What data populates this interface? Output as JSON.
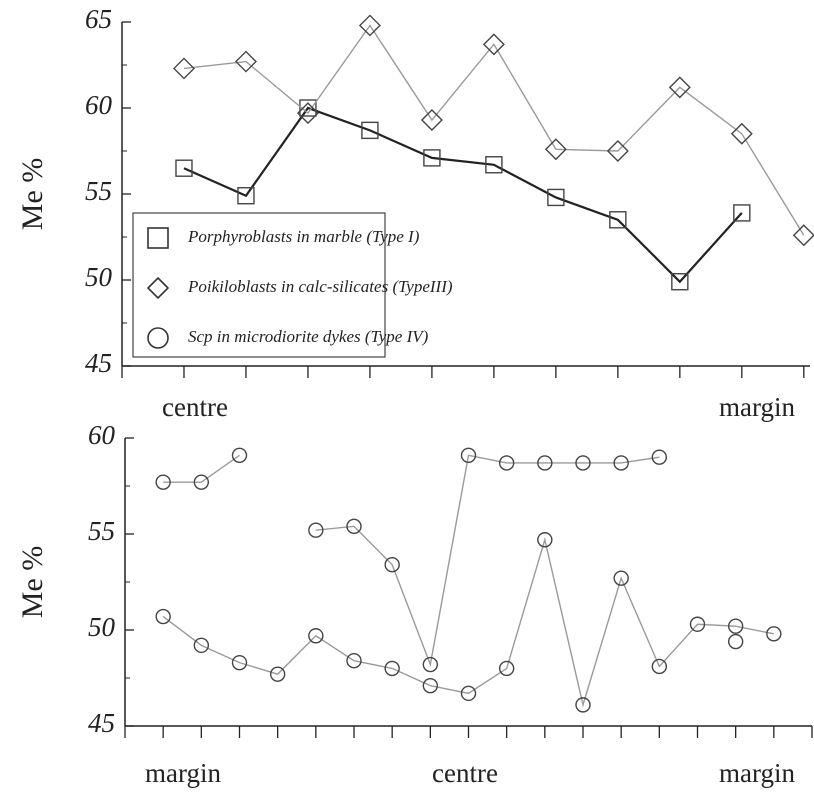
{
  "chart_data": [
    {
      "type": "line",
      "y_label": "Me %",
      "x_annotations": [
        "centre",
        "margin"
      ],
      "x": [
        1,
        2,
        3,
        4,
        5,
        6,
        7,
        8,
        9,
        10,
        11
      ],
      "xlim": [
        0,
        11.1
      ],
      "xticks": [
        0,
        1,
        2,
        3,
        4,
        5,
        6,
        7,
        8,
        9,
        10,
        11
      ],
      "ylim": [
        45,
        65
      ],
      "yticks": [
        45,
        50,
        55,
        60,
        65
      ],
      "series": [
        {
          "name": "Porphyroblasts in marble (Type I)",
          "marker": "square",
          "color": "#222222",
          "values": [
            56.5,
            54.9,
            60.0,
            58.7,
            57.1,
            56.7,
            54.8,
            53.5,
            49.9,
            53.9,
            null
          ]
        },
        {
          "name": "Poikiloblasts in calc-silicates (TypeIII)",
          "marker": "diamond",
          "color": "#9a9a9a",
          "values": [
            62.3,
            62.7,
            59.7,
            64.8,
            59.3,
            63.7,
            57.6,
            57.5,
            61.2,
            58.5,
            52.6
          ]
        }
      ],
      "legend": "lower left"
    },
    {
      "type": "line",
      "y_label": "Me %",
      "x_annotations": [
        "margin",
        "centre",
        "margin"
      ],
      "series_name": "Scp in microdiorite dykes (Type IV)",
      "marker": "circle",
      "x": [
        1,
        2,
        3,
        4,
        5,
        6,
        7,
        8,
        9,
        10,
        11,
        12,
        13,
        14,
        15,
        16,
        17
      ],
      "xlim": [
        0,
        18
      ],
      "xticks": [
        0,
        1,
        2,
        3,
        4,
        5,
        6,
        7,
        8,
        9,
        10,
        11,
        12,
        13,
        14,
        15,
        16,
        17,
        18
      ],
      "ylim": [
        45,
        60
      ],
      "yticks": [
        45,
        50,
        55,
        60
      ],
      "series": [
        {
          "color": "#9a9a9a",
          "values": [
            57.7,
            57.7,
            59.1,
            null,
            55.2,
            55.4,
            53.4,
            48.2,
            59.1,
            58.7,
            58.7,
            58.7,
            58.7,
            59.0,
            null,
            49.4,
            null
          ]
        },
        {
          "color": "#9a9a9a",
          "values": [
            50.7,
            49.2,
            48.3,
            47.7,
            49.7,
            48.4,
            48.0,
            47.1,
            46.7,
            48.0,
            54.7,
            46.1,
            52.7,
            48.1,
            50.3,
            50.2,
            49.8
          ]
        }
      ]
    }
  ]
}
